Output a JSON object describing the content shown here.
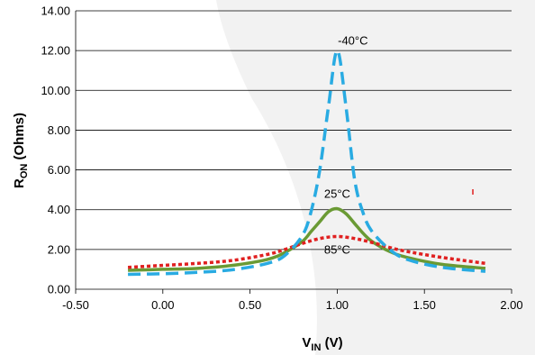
{
  "chart_data": {
    "type": "line",
    "title": "",
    "xlabel": {
      "main": "V",
      "sub": "IN",
      "unit": " (V)"
    },
    "ylabel": {
      "main": "R",
      "sub": "ON",
      "unit": " (Ohms)"
    },
    "xlim": [
      -0.5,
      2.0
    ],
    "ylim": [
      0,
      14
    ],
    "xticks": [
      "-0.50",
      "0.00",
      "0.50",
      "1.00",
      "1.50",
      "2.00"
    ],
    "yticks": [
      "0.00",
      "2.00",
      "4.00",
      "6.00",
      "8.00",
      "10.00",
      "12.00",
      "14.00"
    ],
    "grid": "horizontal",
    "series": [
      {
        "name": "-40°C",
        "color": "#29abe2",
        "dash": "long-dash",
        "x": [
          -0.2,
          0.0,
          0.2,
          0.4,
          0.6,
          0.7,
          0.8,
          0.85,
          0.9,
          0.95,
          1.0,
          1.05,
          1.1,
          1.15,
          1.2,
          1.3,
          1.4,
          1.6,
          1.85
        ],
        "y": [
          0.75,
          0.78,
          0.85,
          0.98,
          1.3,
          1.7,
          2.7,
          3.9,
          6.0,
          9.2,
          12.0,
          9.2,
          5.5,
          3.8,
          2.9,
          2.0,
          1.5,
          1.1,
          0.9
        ]
      },
      {
        "name": "25°C",
        "color": "#6a9a34",
        "dash": "solid",
        "x": [
          -0.2,
          0.0,
          0.2,
          0.4,
          0.6,
          0.7,
          0.8,
          0.85,
          0.9,
          0.95,
          1.0,
          1.05,
          1.1,
          1.15,
          1.2,
          1.3,
          1.4,
          1.6,
          1.85
        ],
        "y": [
          0.95,
          1.0,
          1.05,
          1.2,
          1.5,
          1.85,
          2.4,
          2.9,
          3.4,
          3.9,
          4.05,
          3.8,
          3.3,
          2.8,
          2.4,
          1.9,
          1.6,
          1.25,
          1.05
        ]
      },
      {
        "name": "85°C",
        "color": "#e02020",
        "dash": "dotted",
        "x": [
          -0.2,
          0.0,
          0.2,
          0.4,
          0.6,
          0.7,
          0.8,
          0.9,
          1.0,
          1.1,
          1.2,
          1.3,
          1.4,
          1.6,
          1.85
        ],
        "y": [
          1.1,
          1.2,
          1.3,
          1.45,
          1.75,
          2.0,
          2.3,
          2.55,
          2.65,
          2.55,
          2.35,
          2.1,
          1.9,
          1.6,
          1.3
        ]
      }
    ],
    "annotations": [
      {
        "text": "-40°C",
        "x": 1.09,
        "y": 12.3
      },
      {
        "text": "25°C",
        "x": 1.0,
        "y": 4.6
      },
      {
        "text": "85°C",
        "x": 1.0,
        "y": 1.8
      }
    ]
  }
}
